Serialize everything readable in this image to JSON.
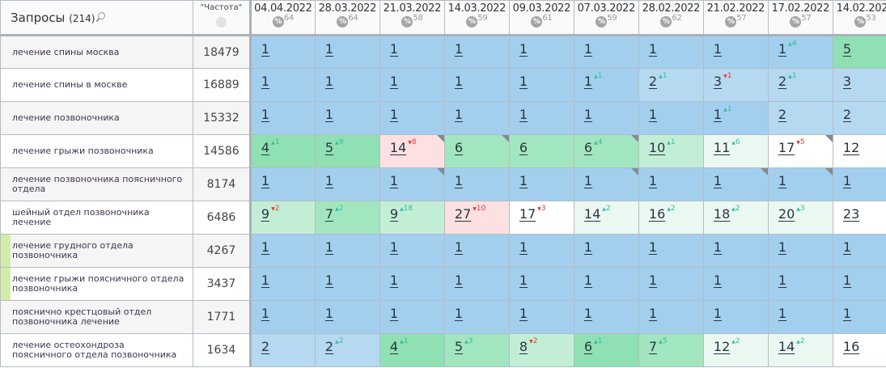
{
  "header": {
    "title": "Запросы",
    "count": "(214)",
    "freq_label": "\"Частота\"",
    "dates": [
      {
        "date": "04.04.2022",
        "pct": "64"
      },
      {
        "date": "28.03.2022",
        "pct": "64"
      },
      {
        "date": "21.03.2022",
        "pct": "58"
      },
      {
        "date": "14.03.2022",
        "pct": "59"
      },
      {
        "date": "09.03.2022",
        "pct": "61"
      },
      {
        "date": "07.03.2022",
        "pct": "59"
      },
      {
        "date": "28.02.2022",
        "pct": "62"
      },
      {
        "date": "21.02.2022",
        "pct": "57"
      },
      {
        "date": "17.02.2022",
        "pct": "57"
      },
      {
        "date": "14.02.2022",
        "pct": "53"
      }
    ]
  },
  "colors": {
    "up": "#2fbfa0",
    "down": "#e53935",
    "top1": "#a3cfee",
    "top3": "#b5d9f1",
    "green": "#8fe0b3",
    "drop": "#fde0e1"
  },
  "rows": [
    {
      "query": "лечение спины москва",
      "freq": "18479",
      "marker": false,
      "cells": [
        [
          "1",
          "",
          "",
          "b1"
        ],
        [
          "1",
          "",
          "",
          "b1"
        ],
        [
          "1",
          "",
          "",
          "b1"
        ],
        [
          "1",
          "",
          "",
          "b1"
        ],
        [
          "1",
          "",
          "",
          "b1"
        ],
        [
          "1",
          "",
          "",
          "b1"
        ],
        [
          "1",
          "",
          "",
          "b1"
        ],
        [
          "1",
          "",
          "",
          "b1"
        ],
        [
          "1",
          "4",
          "up",
          "b1"
        ],
        [
          "5",
          "",
          "",
          "g1"
        ]
      ]
    },
    {
      "query": "лечение спины в москве",
      "freq": "16889",
      "marker": false,
      "cells": [
        [
          "1",
          "",
          "",
          "b1"
        ],
        [
          "1",
          "",
          "",
          "b1"
        ],
        [
          "1",
          "",
          "",
          "b1"
        ],
        [
          "1",
          "",
          "",
          "b1"
        ],
        [
          "1",
          "",
          "",
          "b1"
        ],
        [
          "1",
          "1",
          "up",
          "b1"
        ],
        [
          "2",
          "1",
          "up",
          "b2"
        ],
        [
          "3",
          "1",
          "down",
          "b2"
        ],
        [
          "2",
          "1",
          "up",
          "b2"
        ],
        [
          "3",
          "",
          "",
          "b2"
        ]
      ]
    },
    {
      "query": "лечение позвоночника",
      "freq": "15332",
      "marker": false,
      "cells": [
        [
          "1",
          "",
          "",
          "b1"
        ],
        [
          "1",
          "",
          "",
          "b1"
        ],
        [
          "1",
          "",
          "",
          "b1"
        ],
        [
          "1",
          "",
          "",
          "b1"
        ],
        [
          "1",
          "",
          "",
          "b1"
        ],
        [
          "1",
          "",
          "",
          "b1"
        ],
        [
          "1",
          "",
          "",
          "b1"
        ],
        [
          "1",
          "1",
          "up",
          "b1"
        ],
        [
          "2",
          "",
          "",
          "b2"
        ],
        [
          "2",
          "",
          "",
          "b2"
        ]
      ]
    },
    {
      "query": "лечение грыжи позвоночника",
      "freq": "14586",
      "marker": false,
      "cells": [
        [
          "4",
          "1",
          "up",
          "g1"
        ],
        [
          "5",
          "9",
          "up",
          "g1"
        ],
        [
          "14",
          "8",
          "down",
          "p",
          1
        ],
        [
          "6",
          "",
          "",
          "g2",
          1
        ],
        [
          "6",
          "",
          "",
          "g2"
        ],
        [
          "6",
          "4",
          "up",
          "g2",
          1
        ],
        [
          "10",
          "1",
          "up",
          "g3"
        ],
        [
          "11",
          "6",
          "up",
          "g4"
        ],
        [
          "17",
          "5",
          "down",
          "w",
          1
        ],
        [
          "12",
          "",
          "",
          "w"
        ]
      ]
    },
    {
      "query": "лечение позвоночника поясничного отдела",
      "freq": "8174",
      "marker": false,
      "cells": [
        [
          "1",
          "",
          "",
          "b1"
        ],
        [
          "1",
          "",
          "",
          "b1"
        ],
        [
          "1",
          "",
          "",
          "b1",
          1
        ],
        [
          "1",
          "",
          "",
          "b1"
        ],
        [
          "1",
          "",
          "",
          "b1"
        ],
        [
          "1",
          "",
          "",
          "b1",
          1
        ],
        [
          "1",
          "",
          "",
          "b1"
        ],
        [
          "1",
          "",
          "",
          "b1",
          1
        ],
        [
          "1",
          "",
          "",
          "b1",
          1
        ],
        [
          "1",
          "",
          "",
          "b1"
        ]
      ]
    },
    {
      "query": "шейный отдел позвоночника лечение",
      "freq": "6486",
      "marker": false,
      "cells": [
        [
          "9",
          "2",
          "down",
          "g3"
        ],
        [
          "7",
          "2",
          "up",
          "g2"
        ],
        [
          "9",
          "18",
          "up",
          "g3"
        ],
        [
          "27",
          "10",
          "down",
          "p"
        ],
        [
          "17",
          "3",
          "down",
          "w"
        ],
        [
          "14",
          "2",
          "up",
          "g4"
        ],
        [
          "16",
          "2",
          "up",
          "g4"
        ],
        [
          "18",
          "2",
          "up",
          "g4"
        ],
        [
          "20",
          "3",
          "up",
          "g4"
        ],
        [
          "23",
          "",
          "",
          "w"
        ]
      ]
    },
    {
      "query": "лечение грудного отдела позвоночника",
      "freq": "4267",
      "marker": true,
      "cells": [
        [
          "1",
          "",
          "",
          "b1"
        ],
        [
          "1",
          "",
          "",
          "b1"
        ],
        [
          "1",
          "",
          "",
          "b1"
        ],
        [
          "1",
          "",
          "",
          "b1"
        ],
        [
          "1",
          "",
          "",
          "b1"
        ],
        [
          "1",
          "",
          "",
          "b1"
        ],
        [
          "1",
          "",
          "",
          "b1"
        ],
        [
          "1",
          "",
          "",
          "b1"
        ],
        [
          "1",
          "",
          "",
          "b1"
        ],
        [
          "1",
          "",
          "",
          "b1"
        ]
      ]
    },
    {
      "query": "лечение грыжи поясничного отдела позвоночника",
      "freq": "3437",
      "marker": true,
      "cells": [
        [
          "1",
          "",
          "",
          "b1"
        ],
        [
          "1",
          "",
          "",
          "b1"
        ],
        [
          "1",
          "",
          "",
          "b1"
        ],
        [
          "1",
          "",
          "",
          "b1"
        ],
        [
          "1",
          "",
          "",
          "b1"
        ],
        [
          "1",
          "",
          "",
          "b1"
        ],
        [
          "1",
          "",
          "",
          "b1"
        ],
        [
          "1",
          "",
          "",
          "b1"
        ],
        [
          "1",
          "",
          "",
          "b1"
        ],
        [
          "1",
          "",
          "",
          "b1"
        ]
      ]
    },
    {
      "query": "пояснично крестцовый отдел позвоночника лечение",
      "freq": "1771",
      "marker": false,
      "cells": [
        [
          "1",
          "",
          "",
          "b1"
        ],
        [
          "1",
          "",
          "",
          "b1"
        ],
        [
          "1",
          "",
          "",
          "b1"
        ],
        [
          "1",
          "",
          "",
          "b1"
        ],
        [
          "1",
          "",
          "",
          "b1"
        ],
        [
          "1",
          "",
          "",
          "b1"
        ],
        [
          "1",
          "",
          "",
          "b1"
        ],
        [
          "1",
          "",
          "",
          "b1"
        ],
        [
          "1",
          "",
          "",
          "b1"
        ],
        [
          "1",
          "",
          "",
          "b1"
        ]
      ]
    },
    {
      "query": "лечение остеохондроза поясничного отдела позвоночника",
      "freq": "1634",
      "marker": false,
      "cells": [
        [
          "2",
          "",
          "",
          "b2"
        ],
        [
          "2",
          "2",
          "up",
          "b2"
        ],
        [
          "4",
          "1",
          "up",
          "g1"
        ],
        [
          "5",
          "3",
          "up",
          "g2"
        ],
        [
          "8",
          "2",
          "down",
          "g3"
        ],
        [
          "6",
          "1",
          "up",
          "g1"
        ],
        [
          "7",
          "5",
          "up",
          "g2"
        ],
        [
          "12",
          "2",
          "up",
          "g4"
        ],
        [
          "14",
          "2",
          "up",
          "g4"
        ],
        [
          "16",
          "",
          "",
          "w"
        ]
      ]
    }
  ]
}
